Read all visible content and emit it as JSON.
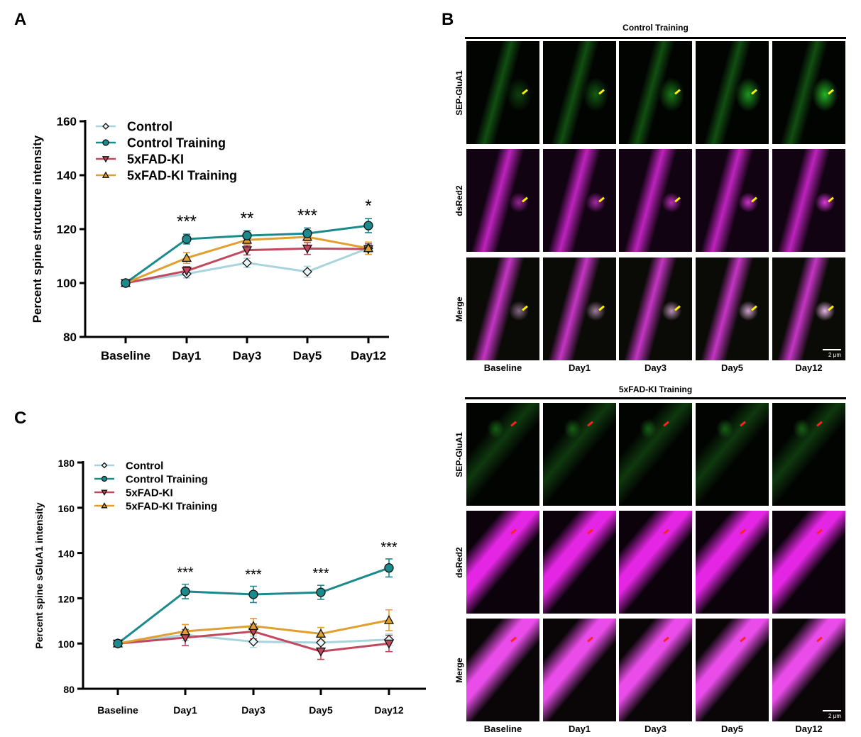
{
  "panels": {
    "a": "A",
    "b": "B",
    "c": "C"
  },
  "chart_data": [
    {
      "type": "line",
      "panel": "A",
      "ylabel": "Percent spine structure intensity",
      "xlabel": "",
      "categories": [
        "Baseline",
        "Day1",
        "Day3",
        "Day5",
        "Day12"
      ],
      "ylim": [
        80,
        160
      ],
      "yticks": [
        80,
        100,
        120,
        140,
        160
      ],
      "legend": "top-left",
      "series": [
        {
          "name": "Control",
          "color": "#a8d4de",
          "marker": "diamond",
          "values": [
            100,
            103.4,
            107.5,
            104.2,
            112.9
          ],
          "err": [
            0.8,
            1.5,
            1.7,
            2.0,
            1.3
          ]
        },
        {
          "name": "Control Training",
          "color": "#1a8a8c",
          "marker": "circle",
          "values": [
            100,
            116.3,
            117.6,
            118.4,
            121.3
          ],
          "err": [
            0.8,
            1.8,
            1.8,
            2.0,
            2.6
          ]
        },
        {
          "name": "5xFAD-KI",
          "color": "#c2485e",
          "marker": "triangle-down",
          "values": [
            100,
            104.5,
            112.2,
            112.8,
            112.6
          ],
          "err": [
            0.8,
            1.6,
            1.8,
            2.2,
            2.0
          ]
        },
        {
          "name": "5xFAD-KI Training",
          "color": "#e0a030",
          "marker": "triangle-up",
          "values": [
            100,
            109.3,
            116.0,
            117.1,
            112.9
          ],
          "err": [
            0.8,
            2.0,
            1.5,
            1.5,
            2.3
          ]
        }
      ],
      "annotations": [
        {
          "category": "Day1",
          "text": "***"
        },
        {
          "category": "Day3",
          "text": "**"
        },
        {
          "category": "Day5",
          "text": "***"
        },
        {
          "category": "Day12",
          "text": "*"
        }
      ]
    },
    {
      "type": "line",
      "panel": "C",
      "ylabel": "Percent spine sGluA1 intensity",
      "xlabel": "",
      "categories": [
        "Baseline",
        "Day1",
        "Day3",
        "Day5",
        "Day12"
      ],
      "ylim": [
        80,
        180
      ],
      "yticks": [
        80,
        100,
        120,
        140,
        160,
        180
      ],
      "legend": "top-left",
      "series": [
        {
          "name": "Control",
          "color": "#a8d4de",
          "marker": "diamond",
          "values": [
            100,
            103.8,
            100.8,
            100.4,
            101.7
          ],
          "err": [
            0.8,
            2.5,
            2.5,
            2.3,
            2.5
          ]
        },
        {
          "name": "Control Training",
          "color": "#1a8a8c",
          "marker": "circle",
          "values": [
            100,
            123.0,
            121.7,
            122.6,
            133.4
          ],
          "err": [
            0.8,
            3.2,
            3.6,
            3.1,
            4.0
          ]
        },
        {
          "name": "5xFAD-KI",
          "color": "#c2485e",
          "marker": "triangle-down",
          "values": [
            100,
            102.6,
            105.3,
            96.5,
            100.0
          ],
          "err": [
            0.8,
            3.5,
            3.3,
            3.5,
            3.6
          ]
        },
        {
          "name": "5xFAD-KI Training",
          "color": "#e0a030",
          "marker": "triangle-up",
          "values": [
            100,
            105.4,
            107.7,
            104.3,
            110.3
          ],
          "err": [
            0.8,
            3.0,
            3.4,
            2.8,
            4.6
          ]
        }
      ],
      "annotations": [
        {
          "category": "Day1",
          "text": "***"
        },
        {
          "category": "Day3",
          "text": "***"
        },
        {
          "category": "Day5",
          "text": "***"
        },
        {
          "category": "Day12",
          "text": "***"
        }
      ]
    }
  ],
  "micrographs": {
    "groups": [
      {
        "title": "Control Training",
        "arrow_color": "#ffee00"
      },
      {
        "title": "5xFAD-KI Training",
        "arrow_color": "#ff2020"
      }
    ],
    "rows": [
      "SEP-GluA1",
      "dsRed2",
      "Merge"
    ],
    "columns": [
      "Baseline",
      "Day1",
      "Day3",
      "Day5",
      "Day12"
    ],
    "scale_bar": "2 μm"
  }
}
